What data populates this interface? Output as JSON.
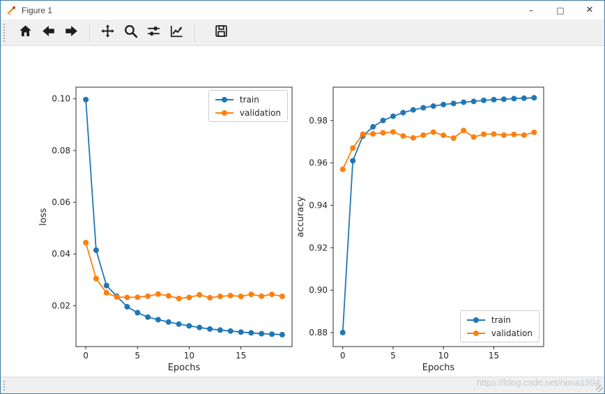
{
  "window": {
    "title": "Figure 1",
    "controls": {
      "minimize": "–",
      "maximize": "□",
      "close": "✕"
    }
  },
  "toolbar": {
    "buttons": [
      {
        "name": "home"
      },
      {
        "name": "back"
      },
      {
        "name": "forward"
      },
      {
        "name": "pan"
      },
      {
        "name": "zoom"
      },
      {
        "name": "configure-subplots"
      },
      {
        "name": "edit-axis"
      },
      {
        "name": "save"
      }
    ]
  },
  "statusbar": {
    "text": ""
  },
  "watermark": "https://blog.csdn.net/nima1994",
  "colors": {
    "train": "#1f77b4",
    "validation": "#ff7f0e"
  },
  "chart_data": [
    {
      "type": "line",
      "title": "",
      "xlabel": "Epochs",
      "ylabel": "loss",
      "x": [
        0,
        1,
        2,
        3,
        4,
        5,
        6,
        7,
        8,
        9,
        10,
        11,
        12,
        13,
        14,
        15,
        16,
        17,
        18,
        19
      ],
      "xlim": [
        -0.95,
        19.95
      ],
      "ylim": [
        0.0042,
        0.1045
      ],
      "xticks": [
        0,
        5,
        10,
        15
      ],
      "xtick_labels": [
        "0",
        "5",
        "10",
        "15"
      ],
      "yticks": [
        0.02,
        0.04,
        0.06,
        0.08,
        0.1
      ],
      "ytick_labels": [
        "0.02",
        "0.04",
        "0.06",
        "0.08",
        "0.10"
      ],
      "grid": false,
      "legend_position": "upper right",
      "series": [
        {
          "name": "train",
          "color": "#1f77b4",
          "values": [
            0.0997,
            0.0415,
            0.0278,
            0.0237,
            0.0196,
            0.0173,
            0.0156,
            0.0146,
            0.0137,
            0.0129,
            0.0122,
            0.0116,
            0.011,
            0.0106,
            0.0102,
            0.0098,
            0.0095,
            0.0092,
            0.009,
            0.0088
          ]
        },
        {
          "name": "validation",
          "color": "#ff7f0e",
          "values": [
            0.0444,
            0.0305,
            0.025,
            0.0234,
            0.0232,
            0.0233,
            0.0237,
            0.0245,
            0.0238,
            0.0228,
            0.0232,
            0.0242,
            0.0231,
            0.0236,
            0.0239,
            0.0236,
            0.0244,
            0.0237,
            0.0244,
            0.0236
          ]
        }
      ]
    },
    {
      "type": "line",
      "title": "",
      "xlabel": "Epochs",
      "ylabel": "accuracy",
      "x": [
        0,
        1,
        2,
        3,
        4,
        5,
        6,
        7,
        8,
        9,
        10,
        11,
        12,
        13,
        14,
        15,
        16,
        17,
        18,
        19
      ],
      "xlim": [
        -0.95,
        19.95
      ],
      "ylim": [
        0.8734,
        0.9957
      ],
      "xticks": [
        0,
        5,
        10,
        15
      ],
      "xtick_labels": [
        "0",
        "5",
        "10",
        "15"
      ],
      "yticks": [
        0.88,
        0.9,
        0.92,
        0.94,
        0.96,
        0.98
      ],
      "ytick_labels": [
        "0.88",
        "0.90",
        "0.92",
        "0.94",
        "0.96",
        "0.98"
      ],
      "grid": false,
      "legend_position": "lower right",
      "series": [
        {
          "name": "train",
          "color": "#1f77b4",
          "values": [
            0.88,
            0.961,
            0.9727,
            0.977,
            0.98,
            0.982,
            0.9837,
            0.985,
            0.986,
            0.9868,
            0.9875,
            0.988,
            0.9886,
            0.989,
            0.9895,
            0.9898,
            0.99,
            0.9903,
            0.9905,
            0.9907
          ]
        },
        {
          "name": "validation",
          "color": "#ff7f0e",
          "values": [
            0.957,
            0.967,
            0.9735,
            0.9737,
            0.9742,
            0.9746,
            0.9727,
            0.9718,
            0.9731,
            0.9745,
            0.973,
            0.9717,
            0.9753,
            0.9722,
            0.9735,
            0.9736,
            0.9731,
            0.9734,
            0.9731,
            0.9744
          ]
        }
      ]
    }
  ]
}
